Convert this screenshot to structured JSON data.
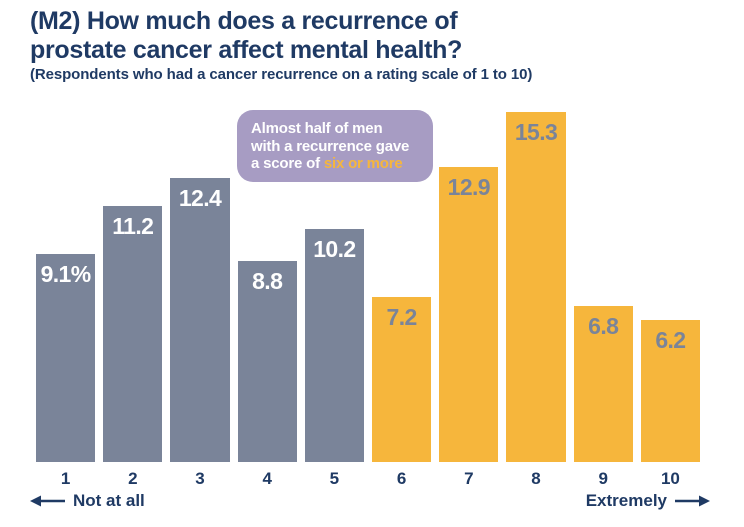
{
  "header": {
    "title_line1": "(M2) How much does a recurrence of",
    "title_line2": "prostate cancer affect mental health?",
    "subtitle": "(Respondents who had a cancer recurrence on a rating scale of 1 to 10)"
  },
  "annotation": {
    "line1": "Almost half of men",
    "line2": "with a recurrence gave",
    "line3_prefix": "a score of ",
    "line3_highlight": "six or more"
  },
  "chart_data": {
    "type": "bar",
    "title": "(M2) How much does a recurrence of prostate cancer affect mental health?",
    "subtitle": "(Respondents who had a cancer recurrence on a rating scale of 1 to 10)",
    "categories": [
      "1",
      "2",
      "3",
      "4",
      "5",
      "6",
      "7",
      "8",
      "9",
      "10"
    ],
    "values": [
      9.1,
      11.2,
      12.4,
      8.8,
      10.2,
      7.2,
      12.9,
      15.3,
      6.8,
      6.2
    ],
    "value_labels": [
      "9.1%",
      "11.2",
      "12.4",
      "8.8",
      "10.2",
      "7.2",
      "12.9",
      "15.3",
      "6.8",
      "6.2"
    ],
    "unit": "percent",
    "ylim": [
      0,
      15.3
    ],
    "axis_left_label": "Not at all",
    "axis_right_label": "Extremely",
    "grid": false,
    "legend": "none",
    "threshold_index": 5,
    "series_note": "bars 1-5 slate (score below six), bars 6-10 yellow (score six or more)"
  },
  "colors": {
    "navy": "#1F3A64",
    "slate_bar": "#7A8499",
    "yellow_bar": "#F6B63C",
    "purple_callout": "#A79CC3",
    "label_on_slate": "#FFFFFF",
    "label_on_yellow": "#7A8499"
  }
}
